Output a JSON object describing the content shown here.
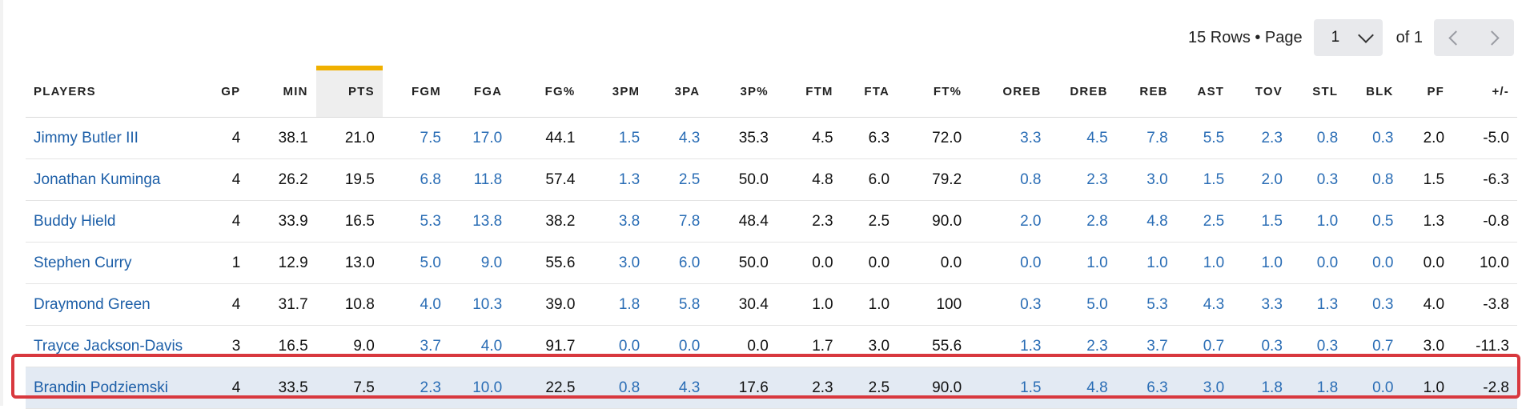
{
  "pagination": {
    "rows_text": "15 Rows • Page",
    "current_page": "1",
    "of_text": "of 1",
    "prev_icon": "chevron-left-icon",
    "next_icon": "chevron-right-icon"
  },
  "table": {
    "sorted_column": "PTS",
    "link_columns": [
      "FGM",
      "FGA",
      "3PM",
      "3PA",
      "OREB",
      "DREB",
      "REB",
      "AST",
      "TOV",
      "STL",
      "BLK"
    ],
    "columns": [
      "PLAYERS",
      "GP",
      "MIN",
      "PTS",
      "FGM",
      "FGA",
      "FG%",
      "3PM",
      "3PA",
      "3P%",
      "FTM",
      "FTA",
      "FT%",
      "OREB",
      "DREB",
      "REB",
      "AST",
      "TOV",
      "STL",
      "BLK",
      "PF",
      "+/-"
    ],
    "rows": [
      [
        "Jimmy Butler III",
        "4",
        "38.1",
        "21.0",
        "7.5",
        "17.0",
        "44.1",
        "1.5",
        "4.3",
        "35.3",
        "4.5",
        "6.3",
        "72.0",
        "3.3",
        "4.5",
        "7.8",
        "5.5",
        "2.3",
        "0.8",
        "0.3",
        "2.0",
        "-5.0"
      ],
      [
        "Jonathan Kuminga",
        "4",
        "26.2",
        "19.5",
        "6.8",
        "11.8",
        "57.4",
        "1.3",
        "2.5",
        "50.0",
        "4.8",
        "6.0",
        "79.2",
        "0.8",
        "2.3",
        "3.0",
        "1.5",
        "2.0",
        "0.3",
        "0.8",
        "1.5",
        "-6.3"
      ],
      [
        "Buddy Hield",
        "4",
        "33.9",
        "16.5",
        "5.3",
        "13.8",
        "38.2",
        "3.8",
        "7.8",
        "48.4",
        "2.3",
        "2.5",
        "90.0",
        "2.0",
        "2.8",
        "4.8",
        "2.5",
        "1.5",
        "1.0",
        "0.5",
        "1.3",
        "-0.8"
      ],
      [
        "Stephen Curry",
        "1",
        "12.9",
        "13.0",
        "5.0",
        "9.0",
        "55.6",
        "3.0",
        "6.0",
        "50.0",
        "0.0",
        "0.0",
        "0.0",
        "0.0",
        "1.0",
        "1.0",
        "1.0",
        "1.0",
        "0.0",
        "0.0",
        "0.0",
        "10.0"
      ],
      [
        "Draymond Green",
        "4",
        "31.7",
        "10.8",
        "4.0",
        "10.3",
        "39.0",
        "1.8",
        "5.8",
        "30.4",
        "1.0",
        "1.0",
        "100",
        "0.3",
        "5.0",
        "5.3",
        "4.3",
        "3.3",
        "1.3",
        "0.3",
        "4.0",
        "-3.8"
      ],
      [
        "Trayce Jackson-Davis",
        "3",
        "16.5",
        "9.0",
        "3.7",
        "4.0",
        "91.7",
        "0.0",
        "0.0",
        "0.0",
        "1.7",
        "3.0",
        "55.6",
        "1.3",
        "2.3",
        "3.7",
        "0.7",
        "0.3",
        "0.3",
        "0.7",
        "3.0",
        "-11.3"
      ],
      [
        "Brandin Podziemski",
        "4",
        "33.5",
        "7.5",
        "2.3",
        "10.0",
        "22.5",
        "0.8",
        "4.3",
        "17.6",
        "2.3",
        "2.5",
        "90.0",
        "1.5",
        "4.8",
        "6.3",
        "3.0",
        "1.8",
        "1.8",
        "0.0",
        "1.0",
        "-2.8"
      ]
    ],
    "highlighted_row": 6,
    "highlight_color": "#d8383e",
    "accent_color": "#f0b000",
    "link_color": "#2a6db5"
  }
}
